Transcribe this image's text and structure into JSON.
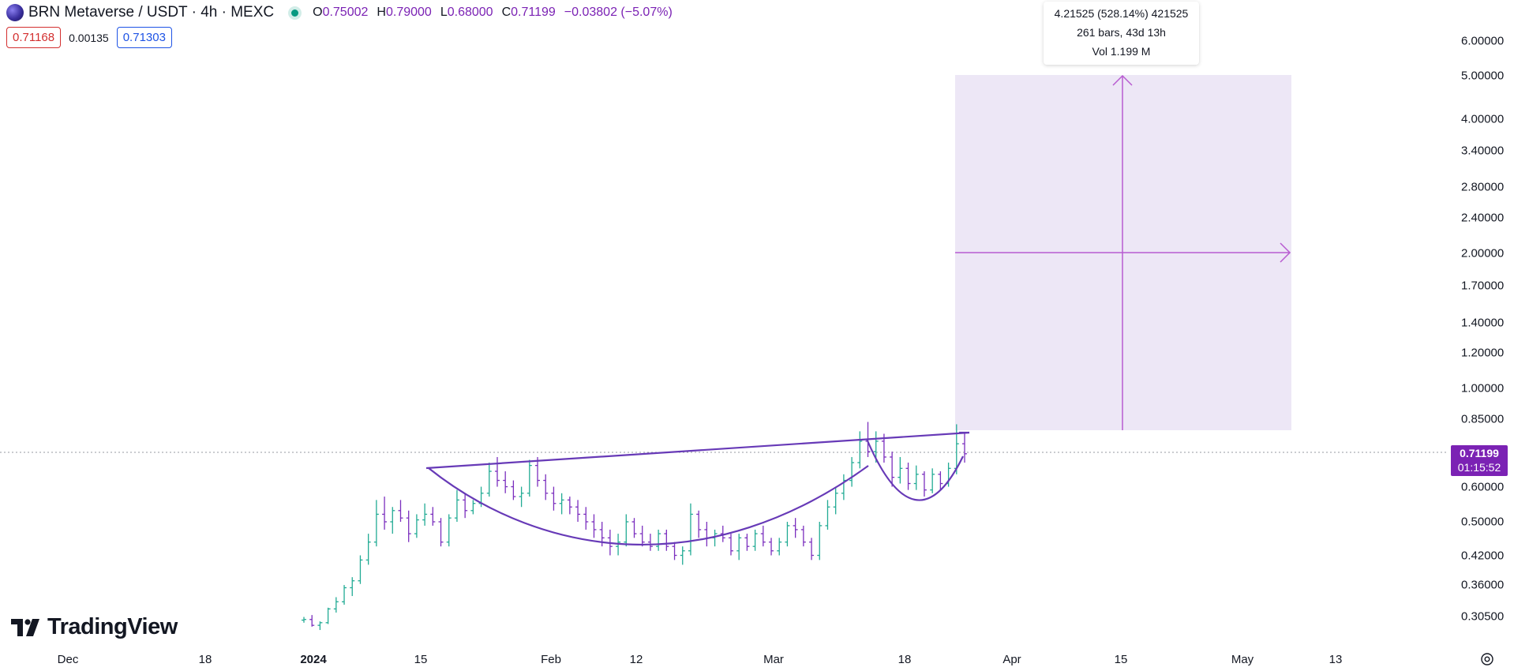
{
  "header": {
    "symbol_title": "BRN Metaverse / USDT · 4h · MEXC",
    "symbol_icon": "brn-coin-icon",
    "status_icon": "market-open-dot-icon",
    "ohlc": {
      "open_label": "O",
      "open": "0.75002",
      "high_label": "H",
      "high": "0.79000",
      "low_label": "L",
      "low": "0.68000",
      "close_label": "C",
      "close": "0.71199"
    },
    "change": "−0.03802 (−5.07%)"
  },
  "quote": {
    "bid": "0.71168",
    "spread": "0.00135",
    "ask": "0.71303"
  },
  "measure_tooltip": {
    "line1": "4.21525 (528.14%) 421525",
    "line2": "261 bars, 43d 13h",
    "line3": "Vol 1.199 M"
  },
  "price_axis": {
    "labels": [
      "6.00000",
      "5.00000",
      "4.00000",
      "3.40000",
      "2.80000",
      "2.40000",
      "2.00000",
      "1.70000",
      "1.40000",
      "1.20000",
      "1.00000",
      "0.85000",
      "0.60000",
      "0.50000",
      "0.42000",
      "0.36000",
      "0.30500"
    ],
    "scale": "log"
  },
  "time_axis": {
    "labels": [
      "Dec",
      "18",
      "2024",
      "15",
      "Feb",
      "12",
      "Mar",
      "18",
      "Apr",
      "15",
      "May",
      "13"
    ]
  },
  "current_price": {
    "price": "0.71199",
    "countdown": "01:15:52"
  },
  "logo": {
    "text": "TradingView",
    "icon": "tradingview-logo-icon"
  },
  "settings_icon": "settings-icon",
  "colors": {
    "accent": "#7b22b4",
    "drawing": "#673ab7",
    "measure_fill": "#ede7f6",
    "measure_arrow": "#b85bd1",
    "bid": "#d32f2f",
    "ask": "#1e53e5",
    "up_bar": "#22ab94",
    "down_bar": "#7b2fbe"
  },
  "chart_data": {
    "type": "ohlc",
    "ylim": [
      0.29,
      7.0
    ],
    "series": [
      {
        "values": [
          [
            0.3,
            0.305,
            0.296,
            0.301
          ],
          [
            0.301,
            0.308,
            0.29,
            0.292
          ],
          [
            0.292,
            0.298,
            0.285,
            0.296
          ],
          [
            0.296,
            0.32,
            0.294,
            0.318
          ],
          [
            0.318,
            0.338,
            0.312,
            0.33
          ],
          [
            0.33,
            0.36,
            0.325,
            0.355
          ],
          [
            0.355,
            0.375,
            0.34,
            0.368
          ],
          [
            0.368,
            0.42,
            0.362,
            0.41
          ],
          [
            0.41,
            0.47,
            0.4,
            0.45
          ],
          [
            0.45,
            0.56,
            0.44,
            0.52
          ],
          [
            0.52,
            0.57,
            0.48,
            0.5
          ],
          [
            0.5,
            0.54,
            0.47,
            0.53
          ],
          [
            0.53,
            0.56,
            0.5,
            0.51
          ],
          [
            0.51,
            0.53,
            0.45,
            0.47
          ],
          [
            0.47,
            0.52,
            0.46,
            0.505
          ],
          [
            0.505,
            0.55,
            0.49,
            0.52
          ],
          [
            0.52,
            0.54,
            0.49,
            0.5
          ],
          [
            0.5,
            0.51,
            0.44,
            0.45
          ],
          [
            0.45,
            0.52,
            0.44,
            0.51
          ],
          [
            0.51,
            0.59,
            0.5,
            0.56
          ],
          [
            0.56,
            0.58,
            0.51,
            0.53
          ],
          [
            0.53,
            0.56,
            0.52,
            0.55
          ],
          [
            0.55,
            0.6,
            0.54,
            0.58
          ],
          [
            0.58,
            0.68,
            0.57,
            0.65
          ],
          [
            0.65,
            0.7,
            0.6,
            0.62
          ],
          [
            0.62,
            0.65,
            0.58,
            0.6
          ],
          [
            0.6,
            0.62,
            0.56,
            0.57
          ],
          [
            0.57,
            0.6,
            0.54,
            0.58
          ],
          [
            0.58,
            0.69,
            0.57,
            0.67
          ],
          [
            0.67,
            0.7,
            0.6,
            0.62
          ],
          [
            0.62,
            0.64,
            0.56,
            0.58
          ],
          [
            0.58,
            0.6,
            0.53,
            0.55
          ],
          [
            0.55,
            0.58,
            0.52,
            0.56
          ],
          [
            0.56,
            0.57,
            0.52,
            0.54
          ],
          [
            0.54,
            0.56,
            0.5,
            0.52
          ],
          [
            0.52,
            0.54,
            0.48,
            0.5
          ],
          [
            0.5,
            0.52,
            0.46,
            0.48
          ],
          [
            0.48,
            0.5,
            0.44,
            0.46
          ],
          [
            0.46,
            0.48,
            0.42,
            0.44
          ],
          [
            0.44,
            0.47,
            0.42,
            0.45
          ],
          [
            0.45,
            0.52,
            0.44,
            0.5
          ],
          [
            0.5,
            0.51,
            0.46,
            0.47
          ],
          [
            0.47,
            0.49,
            0.44,
            0.45
          ],
          [
            0.45,
            0.47,
            0.43,
            0.44
          ],
          [
            0.44,
            0.48,
            0.43,
            0.47
          ],
          [
            0.47,
            0.48,
            0.43,
            0.44
          ],
          [
            0.44,
            0.45,
            0.41,
            0.42
          ],
          [
            0.42,
            0.44,
            0.4,
            0.43
          ],
          [
            0.43,
            0.55,
            0.42,
            0.52
          ],
          [
            0.52,
            0.53,
            0.46,
            0.48
          ],
          [
            0.48,
            0.5,
            0.44,
            0.46
          ],
          [
            0.46,
            0.48,
            0.44,
            0.47
          ],
          [
            0.47,
            0.49,
            0.45,
            0.46
          ],
          [
            0.46,
            0.47,
            0.42,
            0.43
          ],
          [
            0.43,
            0.47,
            0.41,
            0.46
          ],
          [
            0.46,
            0.47,
            0.43,
            0.44
          ],
          [
            0.44,
            0.48,
            0.43,
            0.47
          ],
          [
            0.47,
            0.49,
            0.44,
            0.45
          ],
          [
            0.45,
            0.46,
            0.42,
            0.43
          ],
          [
            0.43,
            0.46,
            0.42,
            0.45
          ],
          [
            0.45,
            0.5,
            0.44,
            0.49
          ],
          [
            0.49,
            0.51,
            0.46,
            0.48
          ],
          [
            0.48,
            0.49,
            0.44,
            0.45
          ],
          [
            0.45,
            0.46,
            0.41,
            0.42
          ],
          [
            0.42,
            0.5,
            0.41,
            0.49
          ],
          [
            0.49,
            0.56,
            0.48,
            0.54
          ],
          [
            0.54,
            0.6,
            0.52,
            0.58
          ],
          [
            0.58,
            0.64,
            0.56,
            0.62
          ],
          [
            0.62,
            0.7,
            0.6,
            0.68
          ],
          [
            0.68,
            0.8,
            0.66,
            0.76
          ],
          [
            0.76,
            0.84,
            0.7,
            0.72
          ],
          [
            0.72,
            0.8,
            0.68,
            0.76
          ],
          [
            0.76,
            0.79,
            0.68,
            0.7
          ],
          [
            0.7,
            0.72,
            0.6,
            0.63
          ],
          [
            0.63,
            0.7,
            0.61,
            0.66
          ],
          [
            0.66,
            0.68,
            0.59,
            0.61
          ],
          [
            0.61,
            0.67,
            0.59,
            0.64
          ],
          [
            0.64,
            0.65,
            0.57,
            0.59
          ],
          [
            0.59,
            0.66,
            0.58,
            0.64
          ],
          [
            0.64,
            0.65,
            0.59,
            0.61
          ],
          [
            0.61,
            0.68,
            0.6,
            0.66
          ],
          [
            0.66,
            0.83,
            0.64,
            0.75
          ],
          [
            0.75,
            0.79,
            0.68,
            0.712
          ]
        ]
      }
    ]
  }
}
